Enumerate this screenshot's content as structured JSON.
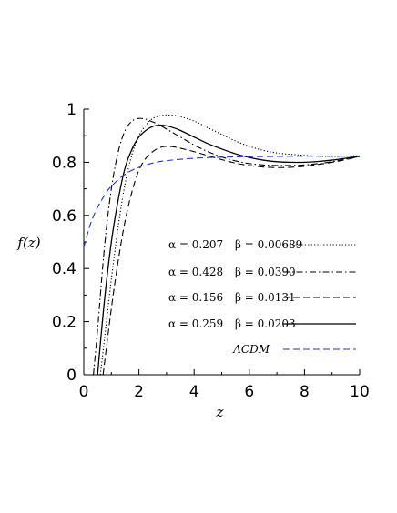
{
  "chart_data": {
    "type": "line",
    "xlabel": "z",
    "ylabel": "f(z)",
    "xlim": [
      0,
      10
    ],
    "ylim": [
      0,
      1
    ],
    "x_ticks": [
      "0",
      "2",
      "4",
      "6",
      "8",
      "10"
    ],
    "y_ticks": [
      "0",
      "0.2",
      "0.4",
      "0.6",
      "0.8",
      "1"
    ],
    "grid": false,
    "legend_position": "right",
    "series": [
      {
        "name": "α = 0.207   β = 0.00689",
        "style": "dotted",
        "color": "#000000",
        "x": [
          0.6,
          0.8,
          1.0,
          1.25,
          1.5,
          1.75,
          2.0,
          2.25,
          2.5,
          2.75,
          3.0,
          3.25,
          3.5,
          4.0,
          4.5,
          5.0,
          5.5,
          6.0,
          6.5,
          7.0,
          7.5,
          8.0,
          8.5,
          9.0,
          9.5,
          10.0
        ],
        "y": [
          0.0,
          0.18,
          0.36,
          0.56,
          0.72,
          0.83,
          0.9,
          0.94,
          0.965,
          0.975,
          0.978,
          0.977,
          0.972,
          0.955,
          0.93,
          0.905,
          0.88,
          0.86,
          0.845,
          0.835,
          0.83,
          0.826,
          0.823,
          0.822,
          0.823,
          0.825
        ]
      },
      {
        "name": "α = 0.428   β = 0.0390",
        "style": "dashdot",
        "color": "#000000",
        "x": [
          0.35,
          0.5,
          0.75,
          1.0,
          1.25,
          1.5,
          1.75,
          2.0,
          2.25,
          2.5,
          2.75,
          3.0,
          3.5,
          4.0,
          4.5,
          5.0,
          5.5,
          6.0,
          6.5,
          7.0,
          7.5,
          8.0,
          8.5,
          9.0,
          9.5,
          10.0
        ],
        "y": [
          0.0,
          0.17,
          0.48,
          0.7,
          0.84,
          0.92,
          0.955,
          0.965,
          0.962,
          0.952,
          0.94,
          0.925,
          0.895,
          0.865,
          0.84,
          0.82,
          0.805,
          0.795,
          0.79,
          0.788,
          0.788,
          0.79,
          0.795,
          0.802,
          0.812,
          0.822
        ]
      },
      {
        "name": "α = 0.156   β = 0.0131",
        "style": "dashed",
        "color": "#000000",
        "x": [
          0.7,
          1.0,
          1.25,
          1.5,
          1.75,
          2.0,
          2.25,
          2.5,
          2.75,
          3.0,
          3.25,
          3.5,
          4.0,
          4.5,
          5.0,
          5.5,
          6.0,
          6.5,
          7.0,
          7.5,
          8.0,
          8.5,
          9.0,
          9.5,
          10.0
        ],
        "y": [
          0.0,
          0.25,
          0.43,
          0.58,
          0.69,
          0.77,
          0.815,
          0.84,
          0.855,
          0.86,
          0.858,
          0.853,
          0.84,
          0.825,
          0.81,
          0.797,
          0.788,
          0.782,
          0.78,
          0.781,
          0.785,
          0.792,
          0.8,
          0.81,
          0.822
        ]
      },
      {
        "name": "α = 0.259   β = 0.0203",
        "style": "solid",
        "color": "#000000",
        "x": [
          0.5,
          0.75,
          1.0,
          1.25,
          1.5,
          1.75,
          2.0,
          2.25,
          2.5,
          2.75,
          3.0,
          3.25,
          3.5,
          4.0,
          4.5,
          5.0,
          5.5,
          6.0,
          6.5,
          7.0,
          7.5,
          8.0,
          8.5,
          9.0,
          9.5,
          10.0
        ],
        "y": [
          0.0,
          0.28,
          0.5,
          0.66,
          0.78,
          0.85,
          0.895,
          0.92,
          0.935,
          0.94,
          0.937,
          0.93,
          0.92,
          0.895,
          0.87,
          0.85,
          0.832,
          0.818,
          0.808,
          0.802,
          0.8,
          0.8,
          0.803,
          0.808,
          0.815,
          0.823
        ]
      },
      {
        "name": "ΛCDM",
        "style": "dashed",
        "color": "#2233cc",
        "x": [
          0.0,
          0.25,
          0.5,
          0.75,
          1.0,
          1.5,
          2.0,
          2.5,
          3.0,
          4.0,
          5.0,
          6.0,
          7.0,
          8.0,
          9.0,
          10.0
        ],
        "y": [
          0.48,
          0.57,
          0.63,
          0.675,
          0.71,
          0.755,
          0.781,
          0.797,
          0.806,
          0.815,
          0.819,
          0.821,
          0.822,
          0.823,
          0.823,
          0.823
        ]
      }
    ],
    "legend": [
      {
        "alpha": "α = 0.207",
        "beta": "β = 0.00689"
      },
      {
        "alpha": "α = 0.428",
        "beta": "β = 0.0390"
      },
      {
        "alpha": "α = 0.156",
        "beta": "β = 0.0131"
      },
      {
        "alpha": "α = 0.259",
        "beta": "β = 0.0203"
      },
      {
        "alpha": "ΛCDM",
        "beta": ""
      }
    ]
  }
}
